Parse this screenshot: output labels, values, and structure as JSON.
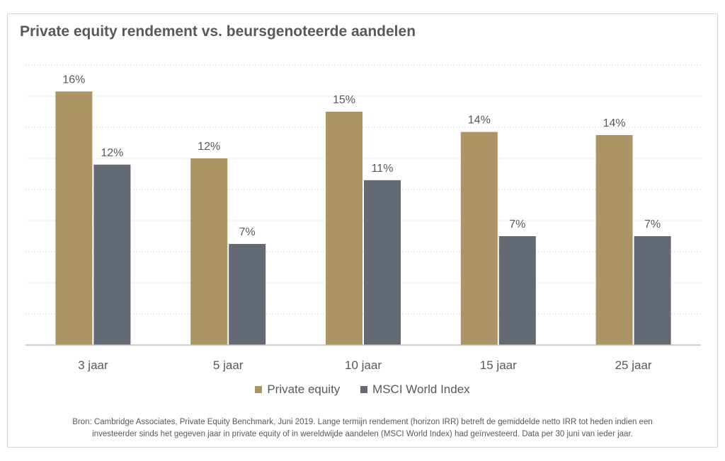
{
  "colors": {
    "private_equity": "#ac9565",
    "msci": "#646a75",
    "grid": "#d9d9d9",
    "axis": "#bfbfbf",
    "text": "#595959"
  },
  "chart_data": {
    "type": "bar",
    "title": "Private equity rendement vs. beursgenoteerde aandelen",
    "categories": [
      "3 jaar",
      "5 jaar",
      "10 jaar",
      "15 jaar",
      "25 jaar"
    ],
    "series": [
      {
        "name": "Private equity",
        "values": [
          16.3,
          12.0,
          15.0,
          13.7,
          13.5
        ],
        "labels": [
          "16%",
          "12%",
          "15%",
          "14%",
          "14%"
        ]
      },
      {
        "name": "MSCI World Index",
        "values": [
          11.6,
          6.5,
          10.6,
          7.0,
          7.0
        ],
        "labels": [
          "12%",
          "7%",
          "11%",
          "7%",
          "7%"
        ]
      }
    ],
    "ylim": [
      0,
      18
    ],
    "grid": true,
    "legend_position": "bottom-center",
    "xlabel": "",
    "ylabel": ""
  },
  "footnote": {
    "line1": "Bron: Cambridge Associates, Private Equity Benchmark, Juni 2019. Lange termijn rendement (horizon IRR) betreft de gemiddelde netto IRR tot heden indien een",
    "line2": "investeerder sinds het gegeven jaar in private equity of in wereldwijde aandelen (MSCI World Index) had geïnvesteerd. Data per 30 juni van ieder jaar."
  }
}
